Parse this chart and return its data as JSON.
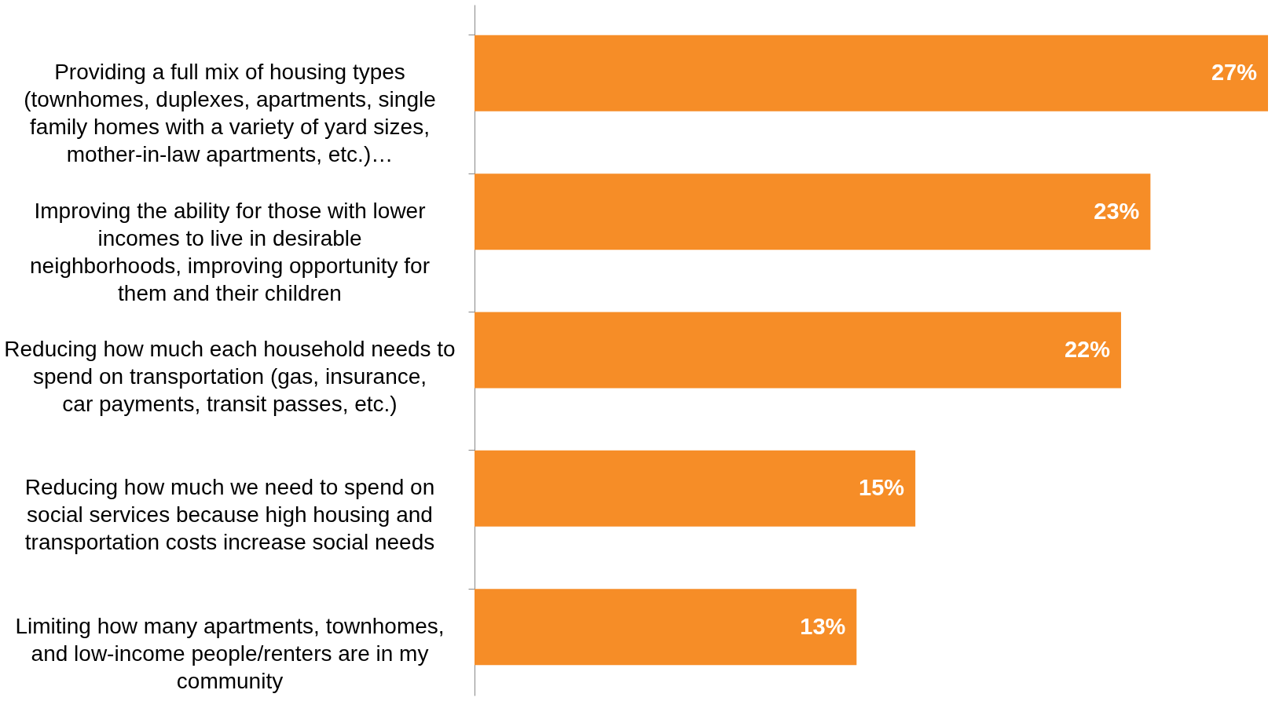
{
  "chart_data": {
    "type": "bar",
    "orientation": "horizontal",
    "categories": [
      "Providing a full mix of housing types (townhomes, duplexes, apartments, single family homes with a variety of yard sizes, mother-in-law apartments, etc.)…",
      "Improving the ability for those with lower incomes to live in desirable neighborhoods, improving opportunity for them and their children",
      "Reducing how much each household needs to spend on transportation (gas, insurance, car payments, transit passes, etc.)",
      "Reducing how much we need to spend on social services because high housing and transportation costs increase social needs",
      "Limiting how many apartments, townhomes, and low-income people/renters are in my community"
    ],
    "values": [
      27,
      23,
      22,
      15,
      13
    ],
    "value_labels": [
      "27%",
      "23%",
      "22%",
      "15%",
      "13%"
    ],
    "color": "#f68d27"
  }
}
